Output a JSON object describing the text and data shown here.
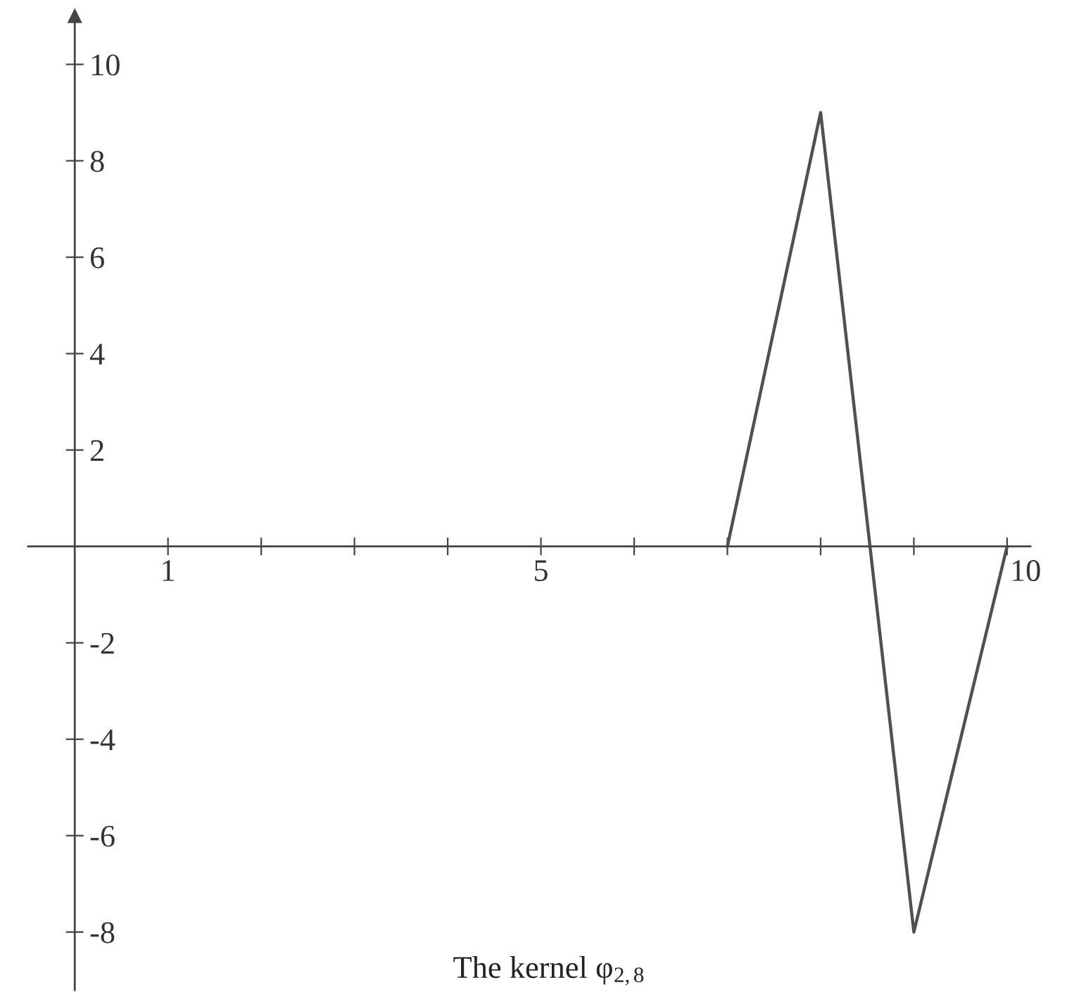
{
  "chart_data": {
    "type": "line",
    "x": [
      7,
      8,
      9,
      10
    ],
    "series": [
      {
        "color": "#505050",
        "values": [
          0,
          9,
          -8,
          0
        ]
      }
    ],
    "xlim": [
      -0.5,
      10.25
    ],
    "ylim": [
      -9.2,
      11
    ],
    "xticks": [
      1,
      {
        "value": 2,
        "label": null
      },
      {
        "value": 3,
        "label": null
      },
      {
        "value": 4,
        "label": null
      },
      5,
      {
        "value": 6,
        "label": null
      },
      {
        "value": 7,
        "label": null
      },
      {
        "value": 8,
        "label": null
      },
      {
        "value": 9,
        "label": null
      },
      10
    ],
    "yticks": [
      -8,
      -6,
      -4,
      -2,
      2,
      4,
      6,
      8,
      10
    ],
    "line_style": "solid",
    "annotations": [
      "The kernel φ$_{2,8}$"
    ]
  }
}
